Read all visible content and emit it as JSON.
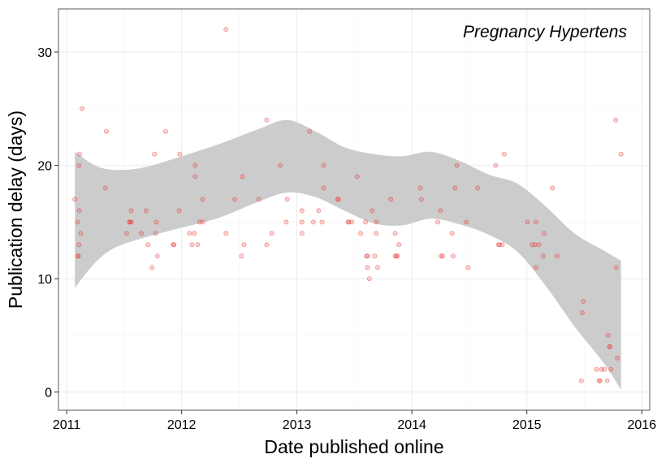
{
  "chart_data": {
    "type": "scatter",
    "title": "",
    "annotation": "Pregnancy Hypertens",
    "xlabel": "Date published online",
    "ylabel": "Publication delay (days)",
    "x_ticks": [
      "2011",
      "2012",
      "2013",
      "2014",
      "2015",
      "2016"
    ],
    "y_ticks": [
      "0",
      "10",
      "20",
      "30"
    ],
    "xlim": [
      "2010-12-06",
      "2016-01-26"
    ],
    "ylim": [
      -1.6,
      33.8
    ],
    "grid": true,
    "point_color": "#e8312f",
    "band_color": "#cccccc",
    "points": [
      {
        "x": "2011-01-27",
        "y": 17
      },
      {
        "x": "2011-02-05",
        "y": 15
      },
      {
        "x": "2011-02-06",
        "y": 12
      },
      {
        "x": "2011-02-07",
        "y": 12
      },
      {
        "x": "2011-02-09",
        "y": 13
      },
      {
        "x": "2011-02-10",
        "y": 16
      },
      {
        "x": "2011-02-09",
        "y": 20
      },
      {
        "x": "2011-02-11",
        "y": 21
      },
      {
        "x": "2011-02-15",
        "y": 14
      },
      {
        "x": "2011-02-19",
        "y": 25
      },
      {
        "x": "2011-05-04",
        "y": 18
      },
      {
        "x": "2011-05-07",
        "y": 23
      },
      {
        "x": "2011-07-10",
        "y": 14
      },
      {
        "x": "2011-07-19",
        "y": 15
      },
      {
        "x": "2011-07-22",
        "y": 15
      },
      {
        "x": "2011-07-25",
        "y": 16
      },
      {
        "x": "2011-07-25",
        "y": 15
      },
      {
        "x": "2011-08-26",
        "y": 14
      },
      {
        "x": "2011-09-10",
        "y": 16
      },
      {
        "x": "2011-09-16",
        "y": 13
      },
      {
        "x": "2011-09-29",
        "y": 11
      },
      {
        "x": "2011-10-07",
        "y": 21
      },
      {
        "x": "2011-10-10",
        "y": 14
      },
      {
        "x": "2011-10-13",
        "y": 15
      },
      {
        "x": "2011-10-16",
        "y": 12
      },
      {
        "x": "2011-11-11",
        "y": 23
      },
      {
        "x": "2011-12-05",
        "y": 13
      },
      {
        "x": "2011-12-08",
        "y": 13
      },
      {
        "x": "2011-12-24",
        "y": 16
      },
      {
        "x": "2011-12-26",
        "y": 21
      },
      {
        "x": "2012-01-26",
        "y": 14
      },
      {
        "x": "2012-02-03",
        "y": 13
      },
      {
        "x": "2012-02-10",
        "y": 14
      },
      {
        "x": "2012-02-13",
        "y": 19
      },
      {
        "x": "2012-02-13",
        "y": 20
      },
      {
        "x": "2012-02-21",
        "y": 13
      },
      {
        "x": "2012-02-27",
        "y": 15
      },
      {
        "x": "2012-03-08",
        "y": 15
      },
      {
        "x": "2012-03-08",
        "y": 17
      },
      {
        "x": "2012-05-21",
        "y": 32
      },
      {
        "x": "2012-05-21",
        "y": 14
      },
      {
        "x": "2012-06-18",
        "y": 17
      },
      {
        "x": "2012-07-09",
        "y": 12
      },
      {
        "x": "2012-07-12",
        "y": 19
      },
      {
        "x": "2012-07-17",
        "y": 13
      },
      {
        "x": "2012-09-02",
        "y": 17
      },
      {
        "x": "2012-09-27",
        "y": 24
      },
      {
        "x": "2012-09-27",
        "y": 13
      },
      {
        "x": "2012-10-13",
        "y": 14
      },
      {
        "x": "2012-11-09",
        "y": 20
      },
      {
        "x": "2012-11-28",
        "y": 15
      },
      {
        "x": "2012-12-01",
        "y": 17
      },
      {
        "x": "2013-01-17",
        "y": 14
      },
      {
        "x": "2013-01-17",
        "y": 15
      },
      {
        "x": "2013-01-17",
        "y": 16
      },
      {
        "x": "2013-02-10",
        "y": 23
      },
      {
        "x": "2013-02-22",
        "y": 15
      },
      {
        "x": "2013-03-11",
        "y": 16
      },
      {
        "x": "2013-03-22",
        "y": 15
      },
      {
        "x": "2013-03-27",
        "y": 20
      },
      {
        "x": "2013-03-27",
        "y": 18
      },
      {
        "x": "2013-05-10",
        "y": 17
      },
      {
        "x": "2013-05-13",
        "y": 17
      },
      {
        "x": "2013-06-12",
        "y": 15
      },
      {
        "x": "2013-06-15",
        "y": 15
      },
      {
        "x": "2013-06-24",
        "y": 15
      },
      {
        "x": "2013-07-11",
        "y": 19
      },
      {
        "x": "2013-07-22",
        "y": 14
      },
      {
        "x": "2013-08-07",
        "y": 15
      },
      {
        "x": "2013-08-10",
        "y": 12
      },
      {
        "x": "2013-08-13",
        "y": 12
      },
      {
        "x": "2013-08-13",
        "y": 11
      },
      {
        "x": "2013-08-19",
        "y": 10
      },
      {
        "x": "2013-08-28",
        "y": 16
      },
      {
        "x": "2013-09-05",
        "y": 12
      },
      {
        "x": "2013-09-10",
        "y": 14
      },
      {
        "x": "2013-09-10",
        "y": 15
      },
      {
        "x": "2013-09-14",
        "y": 11
      },
      {
        "x": "2013-10-26",
        "y": 17
      },
      {
        "x": "2013-11-09",
        "y": 14
      },
      {
        "x": "2013-11-09",
        "y": 12
      },
      {
        "x": "2013-11-13",
        "y": 12
      },
      {
        "x": "2013-11-16",
        "y": 12
      },
      {
        "x": "2013-11-21",
        "y": 13
      },
      {
        "x": "2014-01-28",
        "y": 18
      },
      {
        "x": "2014-01-31",
        "y": 17
      },
      {
        "x": "2014-03-24",
        "y": 15
      },
      {
        "x": "2014-04-02",
        "y": 16
      },
      {
        "x": "2014-04-04",
        "y": 12
      },
      {
        "x": "2014-04-08",
        "y": 12
      },
      {
        "x": "2014-05-09",
        "y": 14
      },
      {
        "x": "2014-05-12",
        "y": 12
      },
      {
        "x": "2014-05-18",
        "y": 18
      },
      {
        "x": "2014-05-24",
        "y": 20
      },
      {
        "x": "2014-06-23",
        "y": 15
      },
      {
        "x": "2014-06-28",
        "y": 11
      },
      {
        "x": "2014-07-29",
        "y": 18
      },
      {
        "x": "2014-09-24",
        "y": 20
      },
      {
        "x": "2014-10-03",
        "y": 13
      },
      {
        "x": "2014-10-06",
        "y": 13
      },
      {
        "x": "2014-10-15",
        "y": 13
      },
      {
        "x": "2014-10-21",
        "y": 21
      },
      {
        "x": "2015-01-03",
        "y": 15
      },
      {
        "x": "2015-01-18",
        "y": 13
      },
      {
        "x": "2015-01-27",
        "y": 13
      },
      {
        "x": "2015-01-30",
        "y": 15
      },
      {
        "x": "2015-01-30",
        "y": 11
      },
      {
        "x": "2015-02-08",
        "y": 13
      },
      {
        "x": "2015-02-22",
        "y": 12
      },
      {
        "x": "2015-02-25",
        "y": 14
      },
      {
        "x": "2015-03-23",
        "y": 18
      },
      {
        "x": "2015-04-07",
        "y": 12
      },
      {
        "x": "2015-06-23",
        "y": 1
      },
      {
        "x": "2015-06-26",
        "y": 7
      },
      {
        "x": "2015-06-29",
        "y": 8
      },
      {
        "x": "2015-08-10",
        "y": 2
      },
      {
        "x": "2015-08-19",
        "y": 1
      },
      {
        "x": "2015-08-21",
        "y": 1
      },
      {
        "x": "2015-08-26",
        "y": 2
      },
      {
        "x": "2015-09-04",
        "y": 2
      },
      {
        "x": "2015-09-13",
        "y": 1
      },
      {
        "x": "2015-09-16",
        "y": 5
      },
      {
        "x": "2015-09-20",
        "y": 4
      },
      {
        "x": "2015-09-22",
        "y": 4
      },
      {
        "x": "2015-09-25",
        "y": 2
      },
      {
        "x": "2015-10-10",
        "y": 24
      },
      {
        "x": "2015-10-12",
        "y": 11
      },
      {
        "x": "2015-10-15",
        "y": 3
      },
      {
        "x": "2015-10-27",
        "y": 21
      }
    ],
    "confidence_band": {
      "x": [
        "2011-01-27",
        "2011-04-01",
        "2011-06-01",
        "2011-09-01",
        "2012-01-01",
        "2012-05-01",
        "2012-09-01",
        "2012-12-01",
        "2013-03-01",
        "2013-06-01",
        "2013-09-01",
        "2013-12-01",
        "2014-03-01",
        "2014-06-01",
        "2014-09-01",
        "2014-12-01",
        "2015-03-01",
        "2015-06-01",
        "2015-09-01",
        "2015-10-27"
      ],
      "upper": [
        21.2,
        20.0,
        19.6,
        19.8,
        20.8,
        21.9,
        23.2,
        24.0,
        23.0,
        21.6,
        21.0,
        20.8,
        21.2,
        20.4,
        19.2,
        18.4,
        16.4,
        14.0,
        12.5,
        11.6
      ],
      "lower": [
        9.2,
        11.4,
        12.7,
        13.6,
        14.5,
        15.4,
        16.8,
        17.6,
        17.2,
        16.0,
        14.9,
        14.7,
        15.3,
        14.8,
        13.9,
        12.4,
        9.4,
        5.8,
        2.6,
        0.2
      ]
    }
  }
}
